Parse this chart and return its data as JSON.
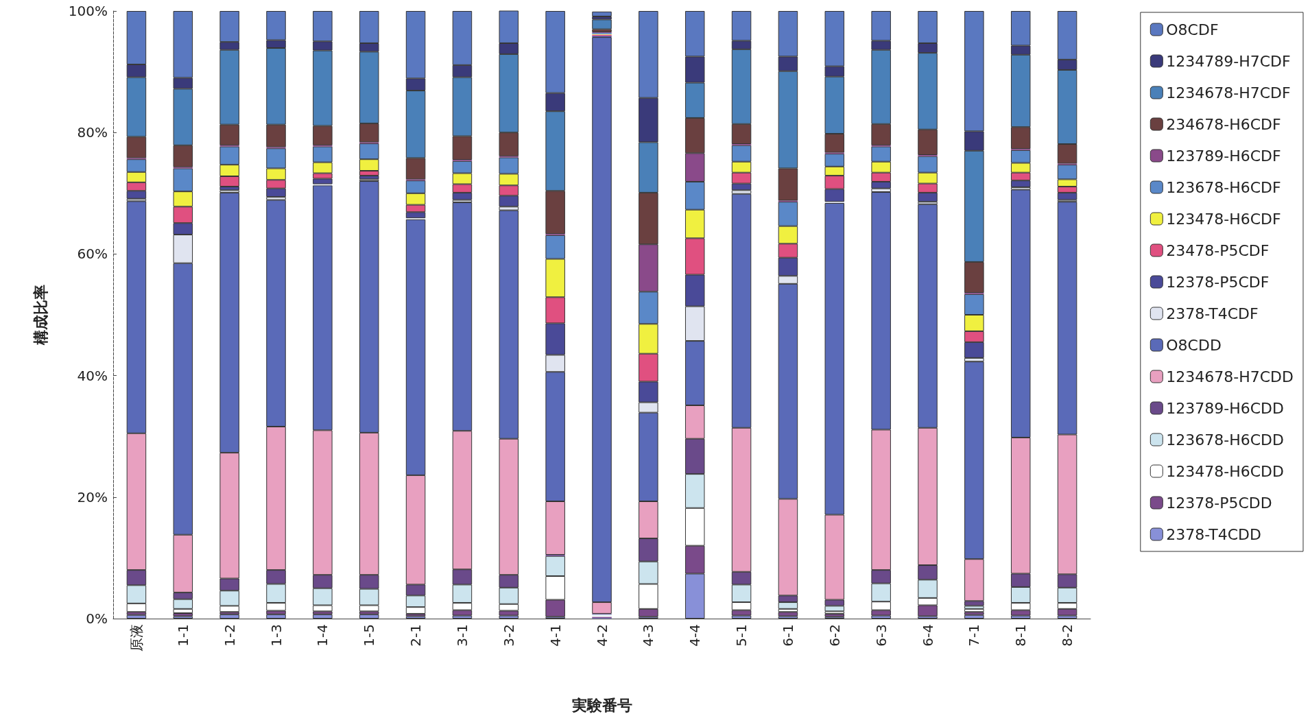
{
  "chart_data": {
    "type": "bar",
    "stacked": true,
    "xlabel": "実験番号",
    "ylabel": "構成比率",
    "legend": "right",
    "categories": [
      "原液",
      "1-1",
      "1-2",
      "1-3",
      "1-4",
      "1-5",
      "2-1",
      "3-1",
      "3-2",
      "4-1",
      "4-2",
      "4-3",
      "4-4",
      "5-1",
      "6-1",
      "6-2",
      "6-3",
      "6-4",
      "7-1",
      "8-1",
      "8-2"
    ],
    "ylim": [
      0,
      100
    ],
    "yticks": [
      {
        "value": 0,
        "label": "0%"
      },
      {
        "value": 20,
        "label": "20%"
      },
      {
        "value": 40,
        "label": "40%"
      },
      {
        "value": 60,
        "label": "60%"
      },
      {
        "value": 80,
        "label": "80%"
      },
      {
        "value": 100,
        "label": "100%"
      }
    ],
    "series": [
      {
        "name": "2378-T4CDD",
        "color": "#8890d8",
        "values": [
          0.6,
          0.4,
          0.7,
          0.7,
          0.7,
          0.7,
          0.4,
          0.5,
          0.5,
          0.3,
          0.1,
          0.3,
          7.4,
          0.5,
          0.4,
          0.3,
          0.5,
          0.4,
          0.6,
          0.5,
          0.5
        ]
      },
      {
        "name": "12378-P5CDD",
        "color": "#7a4a8a",
        "values": [
          0.5,
          0.5,
          0.4,
          0.6,
          0.5,
          0.5,
          0.4,
          0.9,
          0.8,
          2.8,
          0.2,
          1.3,
          4.6,
          0.9,
          0.7,
          0.5,
          0.9,
          1.8,
          0.5,
          0.9,
          1.1
        ]
      },
      {
        "name": "123478-H6CDD",
        "color": "#ffffff",
        "values": [
          1.4,
          0.7,
          1.0,
          1.3,
          1.0,
          1.0,
          1.1,
          1.2,
          1.1,
          3.9,
          0.2,
          4.1,
          6.2,
          1.3,
          0.5,
          0.4,
          1.4,
          1.2,
          0.5,
          1.2,
          1.0
        ]
      },
      {
        "name": "123678-H6CDD",
        "color": "#cce4ee",
        "values": [
          3.0,
          1.6,
          2.5,
          3.1,
          2.8,
          2.7,
          1.9,
          3.0,
          2.7,
          3.3,
          0.2,
          3.7,
          5.6,
          2.9,
          1.1,
          0.9,
          3.0,
          3.0,
          0.5,
          2.6,
          2.5
        ]
      },
      {
        "name": "123789-H6CDD",
        "color": "#6a4a8a",
        "values": [
          2.5,
          1.1,
          2.0,
          2.3,
          2.2,
          2.3,
          1.8,
          2.5,
          2.1,
          0.2,
          0.1,
          3.8,
          5.8,
          2.1,
          1.1,
          1.0,
          2.2,
          2.4,
          0.8,
          2.2,
          2.2
        ]
      },
      {
        "name": "1234678-H7CDD",
        "color": "#e8a0c0",
        "values": [
          22.5,
          9.5,
          20.7,
          23.6,
          23.8,
          23.4,
          18.0,
          22.8,
          22.4,
          8.8,
          1.9,
          6.1,
          5.5,
          23.7,
          15.9,
          14.0,
          23.1,
          22.6,
          6.9,
          22.4,
          23.0
        ]
      },
      {
        "name": "O8CDD",
        "color": "#5a6ab8",
        "values": [
          38.2,
          44.7,
          42.8,
          37.3,
          40.3,
          41.4,
          42.1,
          37.6,
          37.6,
          21.3,
          93.0,
          14.6,
          10.6,
          38.5,
          35.4,
          51.3,
          39.1,
          36.8,
          32.5,
          40.8,
          38.3
        ]
      },
      {
        "name": "2378-T4CDF",
        "color": "#e0e4f0",
        "values": [
          0.4,
          4.7,
          0.4,
          0.5,
          0.2,
          0.3,
          0.2,
          0.4,
          0.6,
          2.8,
          null,
          1.7,
          5.7,
          0.6,
          1.3,
          0.2,
          0.6,
          0.4,
          0.6,
          0.4,
          0.3
        ]
      },
      {
        "name": "12378-P5CDF",
        "color": "#4a4a98",
        "values": [
          1.3,
          1.9,
          0.6,
          1.4,
          0.9,
          0.6,
          1.0,
          1.2,
          1.8,
          5.2,
          0.2,
          3.4,
          5.2,
          1.1,
          3.0,
          2.1,
          1.1,
          1.5,
          2.6,
          1.1,
          1.2
        ]
      },
      {
        "name": "23478-P5CDF",
        "color": "#e05080",
        "values": [
          1.4,
          2.7,
          1.7,
          1.4,
          0.9,
          0.8,
          1.2,
          1.4,
          1.7,
          4.3,
          0.2,
          4.6,
          6.0,
          1.8,
          2.3,
          2.2,
          1.5,
          1.5,
          1.8,
          1.3,
          1.0
        ]
      },
      {
        "name": "123478-H6CDF",
        "color": "#f0f040",
        "values": [
          1.7,
          2.5,
          1.9,
          1.9,
          1.8,
          1.9,
          1.9,
          1.8,
          1.9,
          6.3,
          0.1,
          4.9,
          4.7,
          1.8,
          2.9,
          1.5,
          1.8,
          1.8,
          2.7,
          1.6,
          1.2
        ]
      },
      {
        "name": "123678-H6CDF",
        "color": "#5a88c8",
        "values": [
          2.1,
          3.8,
          3.0,
          3.3,
          2.6,
          2.6,
          2.1,
          2.0,
          2.7,
          3.9,
          0.2,
          5.3,
          4.6,
          2.7,
          4.0,
          2.1,
          2.5,
          2.7,
          3.4,
          2.1,
          2.4
        ]
      },
      {
        "name": "123789-H6CDF",
        "color": "#8a4a8a",
        "values": [
          0.2,
          0.2,
          0.2,
          0.2,
          0.2,
          0.2,
          0.2,
          0.2,
          0.2,
          0.2,
          0.1,
          7.8,
          4.7,
          0.2,
          0.2,
          0.2,
          0.2,
          0.2,
          0.2,
          0.2,
          0.2
        ]
      },
      {
        "name": "234678-H6CDF",
        "color": "#6a4040",
        "values": [
          3.5,
          3.6,
          3.4,
          3.7,
          3.2,
          3.1,
          3.5,
          3.9,
          3.9,
          7.1,
          0.5,
          8.5,
          5.8,
          3.3,
          5.3,
          3.1,
          3.5,
          4.2,
          5.1,
          3.6,
          3.2
        ]
      },
      {
        "name": "1234678-H7CDF",
        "color": "#4a80b8",
        "values": [
          9.8,
          9.3,
          12.3,
          12.6,
          12.4,
          11.8,
          11.1,
          9.7,
          12.9,
          13.1,
          1.6,
          8.3,
          5.8,
          12.3,
          16.0,
          9.4,
          12.2,
          12.6,
          18.3,
          11.9,
          12.2
        ]
      },
      {
        "name": "1234789-H7CDF",
        "color": "#3a3a7a",
        "values": [
          2.1,
          1.8,
          1.3,
          1.3,
          1.5,
          1.4,
          2.0,
          2.0,
          1.8,
          3.0,
          0.5,
          7.3,
          4.3,
          1.4,
          2.4,
          1.7,
          1.5,
          1.6,
          3.2,
          1.5,
          1.7
        ]
      },
      {
        "name": "O8CDF",
        "color": "#5a78c0",
        "values": [
          8.8,
          11.0,
          5.1,
          4.8,
          5.0,
          5.3,
          11.1,
          8.9,
          5.5,
          13.5,
          0.8,
          14.3,
          7.5,
          4.9,
          7.5,
          9.1,
          4.9,
          5.3,
          19.8,
          5.7,
          8.0
        ]
      }
    ]
  }
}
